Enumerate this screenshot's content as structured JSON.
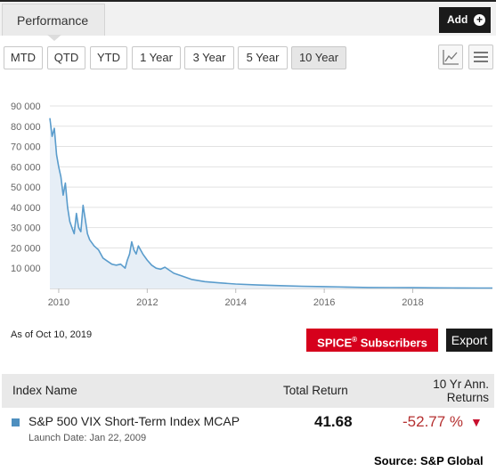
{
  "header": {
    "tab_label": "Performance",
    "add_label": "Add",
    "add_icon": "plus-circle-icon"
  },
  "periods": [
    {
      "label": "MTD",
      "active": false
    },
    {
      "label": "QTD",
      "active": false
    },
    {
      "label": "YTD",
      "active": false
    },
    {
      "label": "1 Year",
      "active": false
    },
    {
      "label": "3 Year",
      "active": false
    },
    {
      "label": "5 Year",
      "active": false
    },
    {
      "label": "10 Year",
      "active": true
    }
  ],
  "view_toggle": {
    "line_icon": "line-chart-icon",
    "menu_icon": "hamburger-menu-icon"
  },
  "chart_data": {
    "type": "area",
    "title": "",
    "xlabel": "",
    "ylabel": "",
    "xlim": [
      2009.8,
      2019.8
    ],
    "ylim": [
      0,
      90000
    ],
    "y_ticks": [
      10000,
      20000,
      30000,
      40000,
      50000,
      60000,
      70000,
      80000,
      90000
    ],
    "y_tick_labels": [
      "10 000",
      "20 000",
      "30 000",
      "40 000",
      "50 000",
      "60 000",
      "70 000",
      "80 000",
      "90 000"
    ],
    "x_ticks": [
      2010,
      2012,
      2014,
      2016,
      2018
    ],
    "x_tick_labels": [
      "2010",
      "2012",
      "2014",
      "2016",
      "2018"
    ],
    "grid": true,
    "color": "#5a9ccc",
    "fill": "#e6eef6",
    "series": [
      {
        "x": [
          2009.8,
          2009.85,
          2009.9,
          2009.95,
          2010.0,
          2010.05,
          2010.1,
          2010.15,
          2010.2,
          2010.25,
          2010.3,
          2010.35,
          2010.4,
          2010.45,
          2010.5,
          2010.55,
          2010.6,
          2010.65,
          2010.7,
          2010.8,
          2010.9,
          2011.0,
          2011.1,
          2011.2,
          2011.3,
          2011.4,
          2011.5,
          2011.55,
          2011.6,
          2011.65,
          2011.7,
          2011.75,
          2011.8,
          2011.9,
          2012.0,
          2012.1,
          2012.2,
          2012.3,
          2012.4,
          2012.5,
          2012.6,
          2012.8,
          2013.0,
          2013.3,
          2013.6,
          2014.0,
          2014.5,
          2015.0,
          2015.5,
          2016.0,
          2016.5,
          2017.0,
          2017.5,
          2018.0,
          2018.5,
          2019.0,
          2019.5,
          2019.8
        ],
        "y": [
          84000,
          75000,
          79000,
          66000,
          60000,
          55000,
          46000,
          52000,
          40000,
          33000,
          30000,
          27000,
          37000,
          30000,
          28000,
          41000,
          34000,
          27000,
          24000,
          21000,
          19000,
          15000,
          13500,
          12000,
          11500,
          12000,
          10000,
          14000,
          17000,
          23000,
          19000,
          17000,
          21000,
          17000,
          14000,
          11500,
          10000,
          9500,
          10500,
          9000,
          7500,
          6000,
          4500,
          3400,
          2800,
          2200,
          1700,
          1400,
          1100,
          900,
          700,
          500,
          450,
          380,
          320,
          260,
          220,
          200
        ]
      }
    ]
  },
  "as_of": {
    "prefix": "As of",
    "date": "Oct 10, 2019"
  },
  "buttons": {
    "spice_brand": "SPICE",
    "spice_reg": "®",
    "spice_suffix": " Subscribers",
    "export": "Export"
  },
  "table": {
    "headers": {
      "name": "Index Name",
      "total": "Total Return",
      "ann_line1": "10 Yr Ann.",
      "ann_line2": "Returns"
    },
    "row": {
      "name": "S&P 500 VIX Short-Term Index MCAP",
      "launch": "Launch Date: Jan 22, 2009",
      "total": "41.68",
      "ann": "-52.77 %",
      "ann_color": "#b53030",
      "series_color": "#4e8fbf"
    }
  },
  "footer": {
    "source": "Source: S&P Global"
  }
}
